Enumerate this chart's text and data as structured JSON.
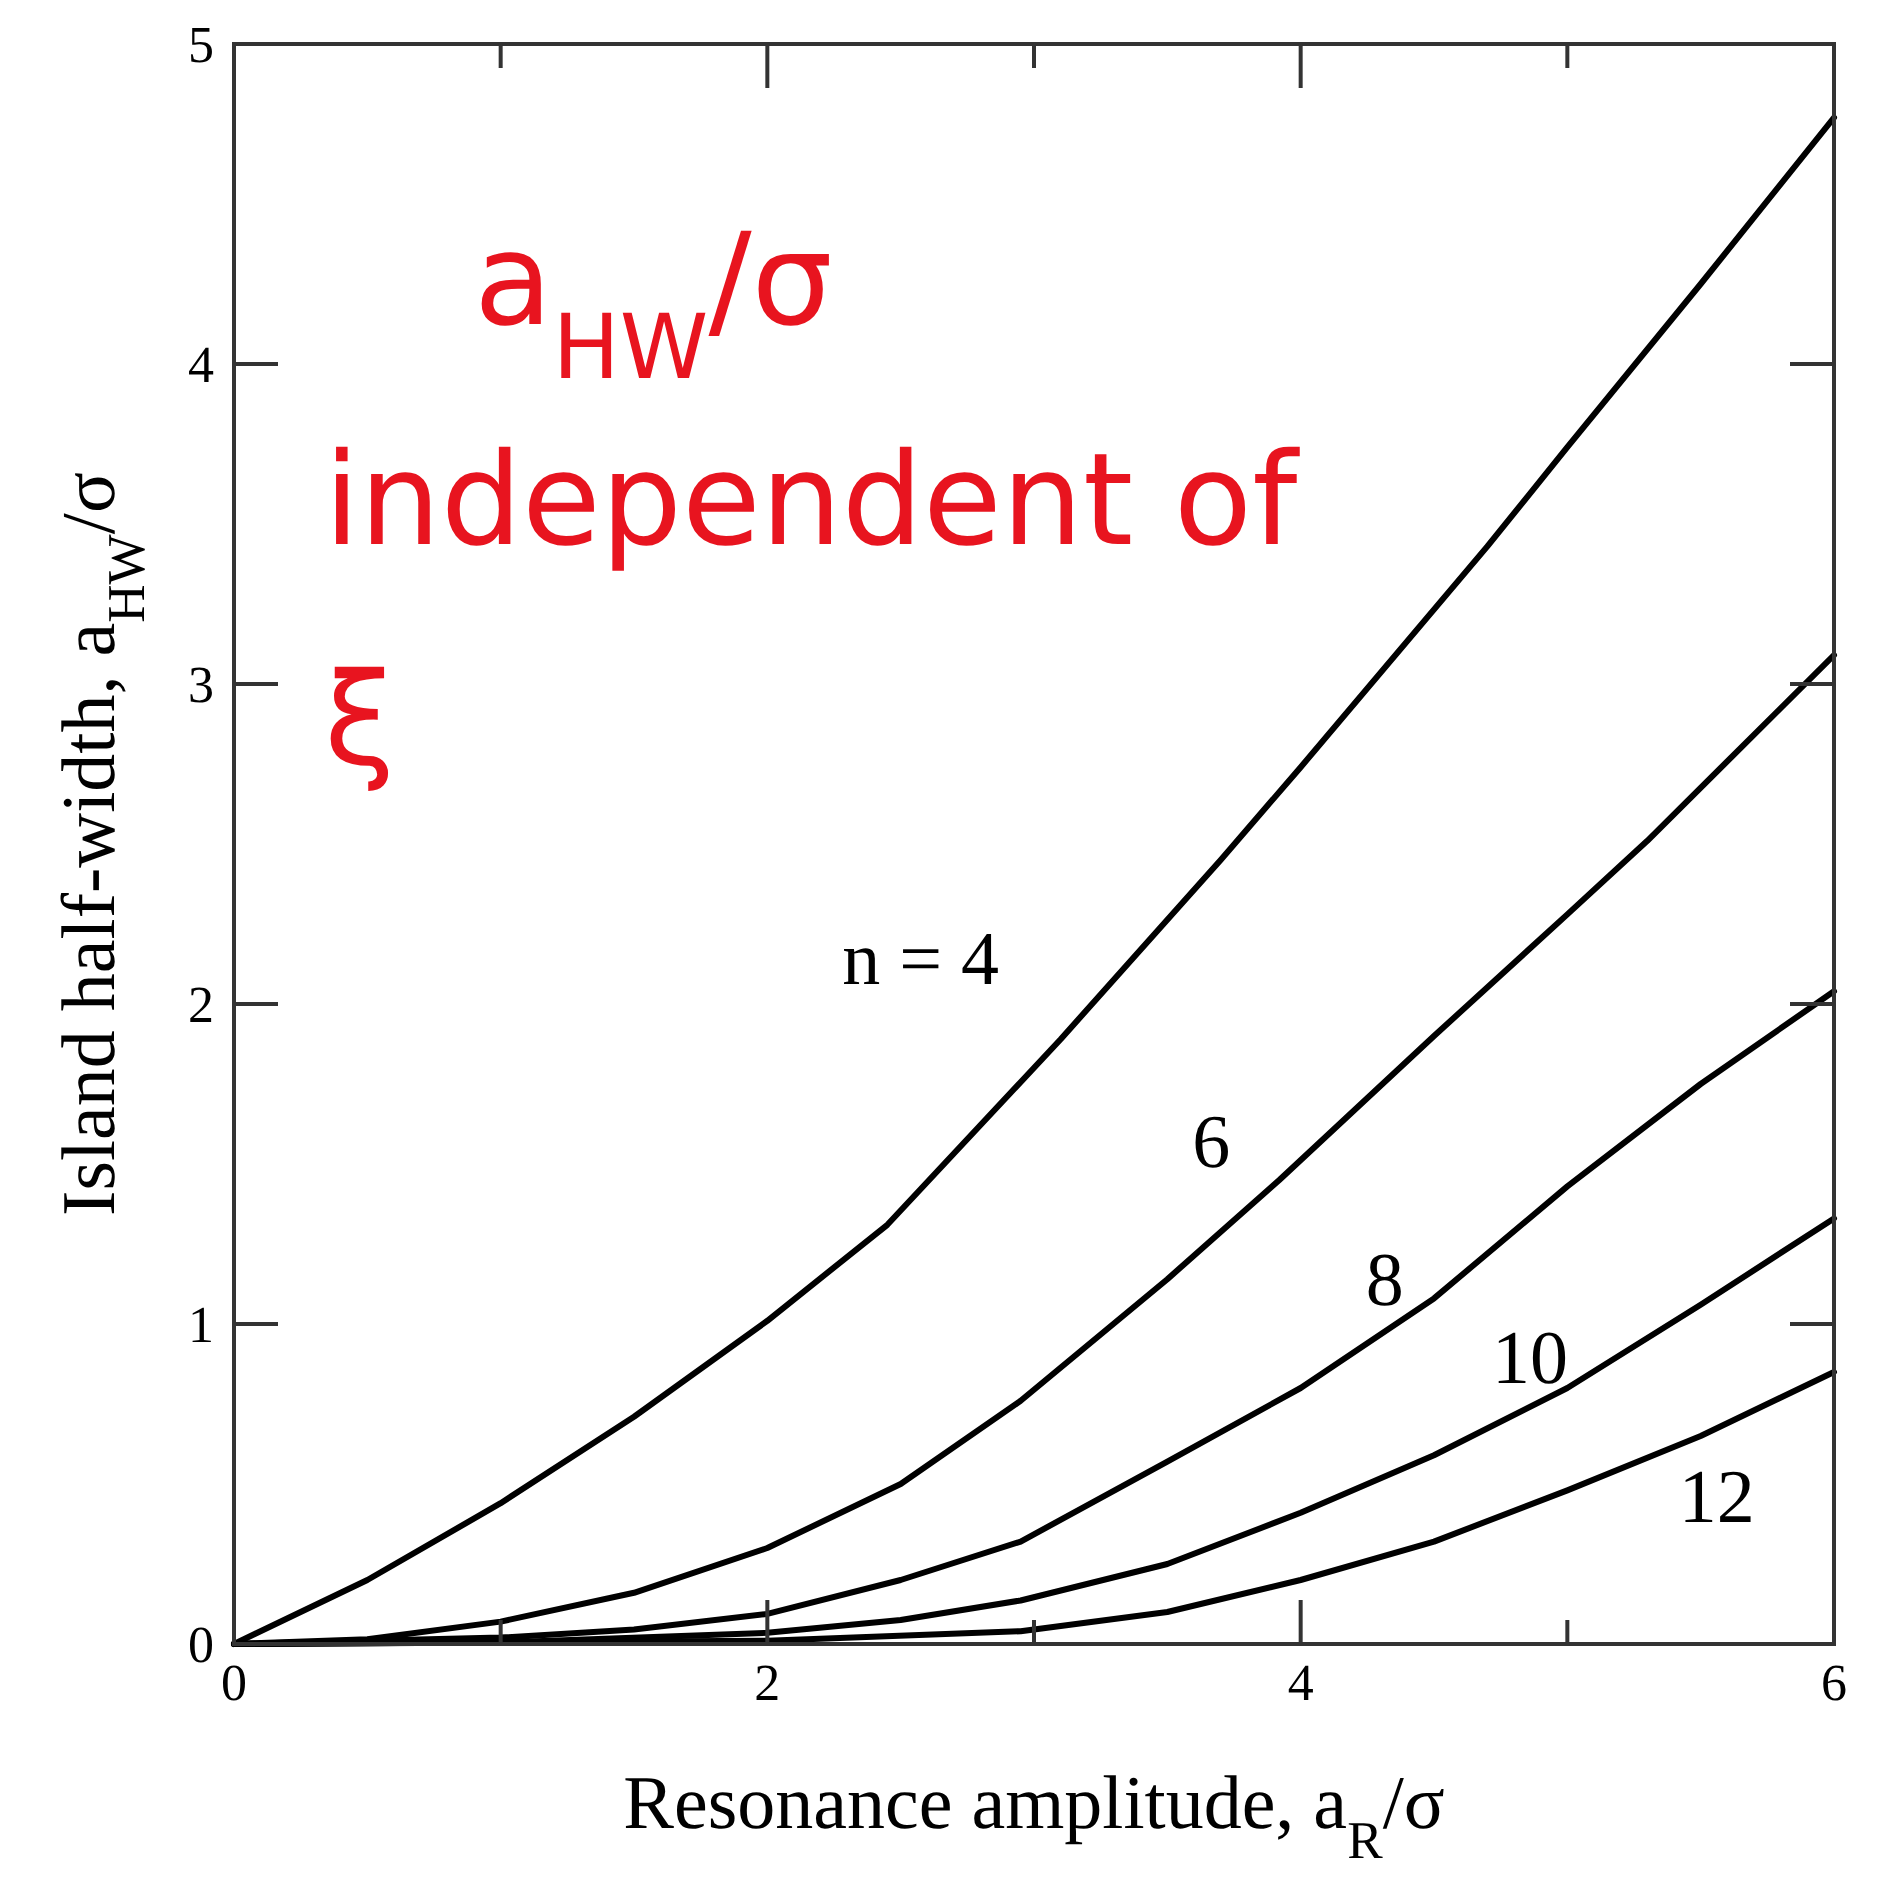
{
  "chart_data": {
    "type": "line",
    "xlabel": "Resonance amplitude,  a$_{R}$/σ",
    "ylabel": "Island half-width,  a$_{HW}$/σ",
    "xlim": [
      0,
      6
    ],
    "ylim": [
      0,
      5
    ],
    "xticks": [
      0,
      {
        "value": 1,
        "label": null
      },
      2,
      {
        "value": 3,
        "label": null
      },
      4,
      {
        "value": 5,
        "label": null
      },
      6
    ],
    "yticks": [
      0,
      1,
      2,
      3,
      4,
      5
    ],
    "grid": false,
    "marker": "none",
    "line_style": "solid",
    "series": [
      {
        "name": "n = 4",
        "color": "#000000",
        "x": [
          0,
          0.5,
          1,
          1.5,
          2,
          2.45,
          3.1,
          3.7,
          4,
          4.7,
          5,
          5.5,
          6
        ],
        "values": [
          0,
          0.2,
          0.44,
          0.71,
          1.01,
          1.31,
          1.89,
          2.45,
          2.74,
          3.43,
          3.74,
          4.25,
          4.77
        ]
      },
      {
        "name": "6",
        "color": "#000000",
        "x": [
          0,
          0.5,
          1,
          1.5,
          2,
          2.5,
          2.95,
          3.5,
          3.92,
          4.5,
          5,
          5.3,
          6
        ],
        "values": [
          0,
          0.015,
          0.07,
          0.16,
          0.3,
          0.5,
          0.76,
          1.14,
          1.45,
          1.9,
          2.28,
          2.51,
          3.09
        ]
      },
      {
        "name": "8",
        "color": "#000000",
        "x": [
          0,
          1,
          1.5,
          2,
          2.5,
          2.95,
          3.5,
          4,
          4.5,
          5,
          5.5,
          6
        ],
        "values": [
          0,
          0.02,
          0.045,
          0.094,
          0.2,
          0.32,
          0.57,
          0.8,
          1.08,
          1.43,
          1.75,
          2.04
        ]
      },
      {
        "name": "10",
        "color": "#000000",
        "x": [
          0,
          1,
          2,
          2.5,
          2.95,
          3.5,
          4,
          4.5,
          5,
          5.5,
          6
        ],
        "values": [
          0,
          0.005,
          0.035,
          0.075,
          0.136,
          0.25,
          0.41,
          0.59,
          0.8,
          1.06,
          1.33
        ]
      },
      {
        "name": "12",
        "color": "#000000",
        "x": [
          0,
          2,
          2.95,
          3.5,
          4,
          4.5,
          5,
          5.5,
          6
        ],
        "values": [
          0,
          0.01,
          0.04,
          0.1,
          0.2,
          0.32,
          0.48,
          0.65,
          0.85
        ]
      }
    ],
    "annotations": [
      "a$_{HW}$/σ\nindependent of\nξ"
    ]
  }
}
